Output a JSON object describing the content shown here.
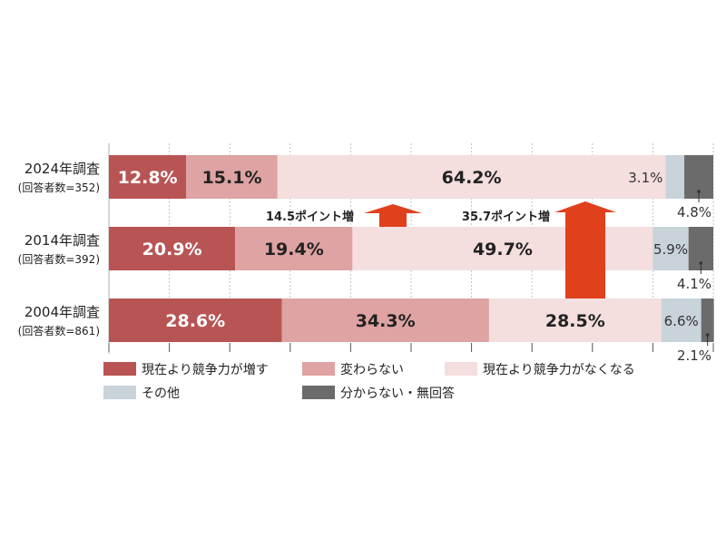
{
  "chart_data": {
    "type": "bar",
    "stacked": true,
    "orientation": "horizontal",
    "xlim": [
      0,
      100
    ],
    "grid": true,
    "legend_position": "bottom",
    "categories": [
      {
        "label": "2024年調査",
        "sublabel": "(回答者数=352)"
      },
      {
        "label": "2014年調査",
        "sublabel": "(回答者数=392)"
      },
      {
        "label": "2004年調査",
        "sublabel": "(回答者数=861)"
      }
    ],
    "series": [
      {
        "name": "現在より競争力が増す",
        "color": "#b85554",
        "label_color": "#ffffff",
        "values": [
          12.8,
          20.9,
          28.6
        ]
      },
      {
        "name": "変わらない",
        "color": "#dea3a2",
        "label_color": "#222222",
        "values": [
          15.1,
          19.4,
          34.3
        ]
      },
      {
        "name": "現在より競争力がなくなる",
        "color": "#f4dede",
        "label_color": "#222222",
        "values": [
          64.2,
          49.7,
          28.5
        ]
      },
      {
        "name": "その他",
        "color": "#c9d3da",
        "label_color": "#333333",
        "values": [
          3.1,
          5.9,
          6.6
        ]
      },
      {
        "name": "分からない・無回答",
        "color": "#6b6b6b",
        "label_color": "#333333",
        "values": [
          4.8,
          4.1,
          2.1
        ]
      }
    ],
    "annotations": [
      {
        "text": "14.5ポイント増",
        "from_category": 1,
        "to_category": 0,
        "series": 2
      },
      {
        "text": "35.7ポイント増",
        "from_category": 2,
        "to_category": 0,
        "series": 2
      }
    ],
    "arrow_color": "#e0401c"
  }
}
